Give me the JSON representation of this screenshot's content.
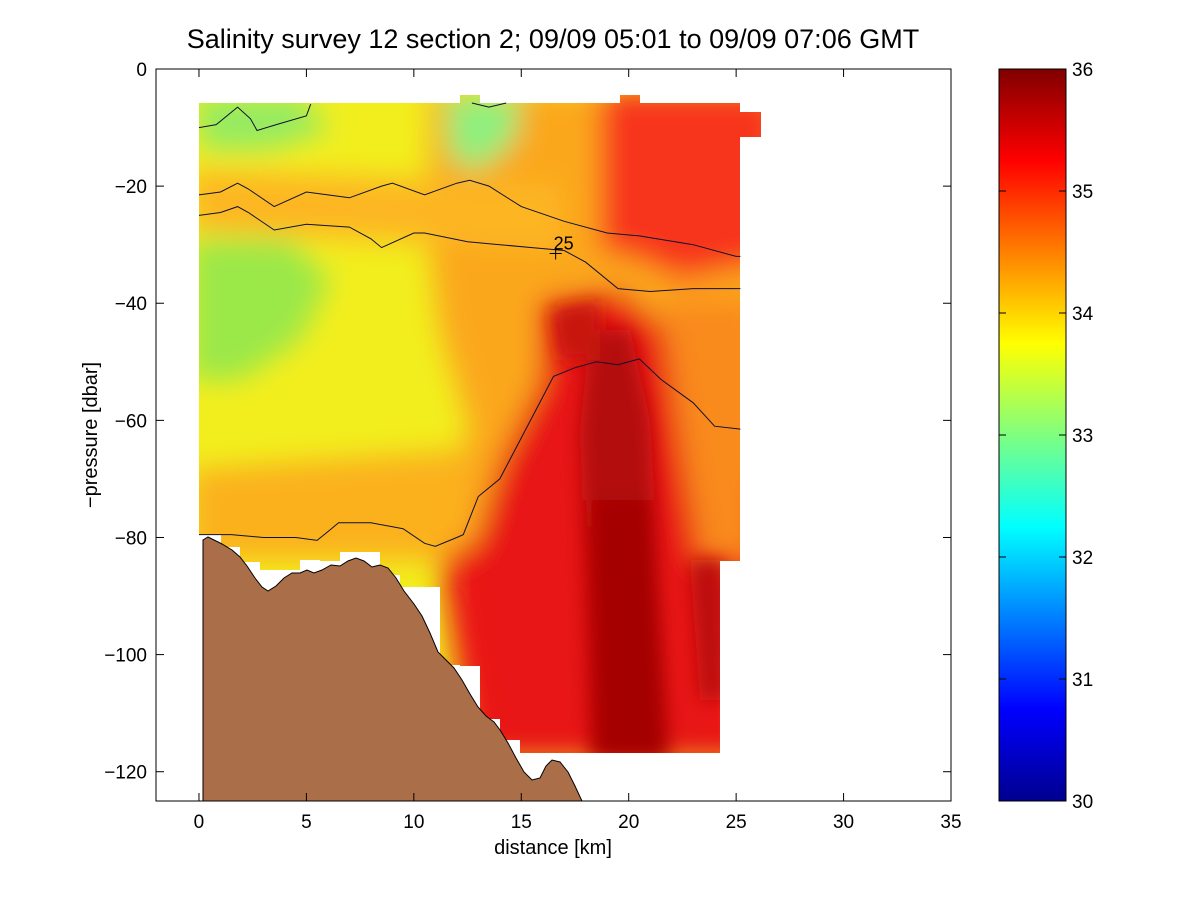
{
  "chart_data": {
    "type": "heatmap",
    "title": "Salinity survey 12 section 2; 09/09 05:01 to 09/09 07:06 GMT",
    "xlabel": "distance [km]",
    "ylabel": "−pressure [dbar]",
    "xlim": [
      -2,
      35
    ],
    "ylim": [
      -125,
      0
    ],
    "xticks": [
      0,
      5,
      10,
      15,
      20,
      25,
      30,
      35
    ],
    "yticks": [
      0,
      -20,
      -40,
      -60,
      -80,
      -100,
      -120
    ],
    "ytick_labels": [
      "0",
      "−20",
      "−40",
      "−60",
      "−80",
      "−100",
      "−120"
    ],
    "grid": false,
    "colorbar": {
      "min": 30,
      "max": 36,
      "ticks": [
        30,
        31,
        32,
        33,
        34,
        35,
        36
      ],
      "colormap": "jet",
      "levels": 64
    },
    "contour_labels": [
      {
        "text": "25",
        "x": 16.6,
        "y": -31.5
      }
    ],
    "contours": [
      {
        "points": [
          [
            0,
            -10
          ],
          [
            0.8,
            -9.5
          ],
          [
            1.8,
            -6.5
          ],
          [
            2.4,
            -8.5
          ],
          [
            2.7,
            -10.5
          ],
          [
            3.6,
            -9.5
          ],
          [
            5,
            -8
          ],
          [
            5.2,
            -6
          ]
        ]
      },
      {
        "points": [
          [
            12.7,
            -5.8
          ],
          [
            13.5,
            -6.5
          ],
          [
            14.3,
            -5.8
          ]
        ]
      },
      {
        "points": [
          [
            0,
            -21.5
          ],
          [
            1,
            -21
          ],
          [
            1.8,
            -19.5
          ],
          [
            2.3,
            -20.5
          ],
          [
            3.5,
            -23.5
          ],
          [
            5,
            -21
          ],
          [
            6,
            -21.5
          ],
          [
            7,
            -22
          ],
          [
            8.5,
            -20
          ],
          [
            9,
            -19.5
          ],
          [
            10.5,
            -21.5
          ],
          [
            12,
            -19.5
          ],
          [
            12.6,
            -19
          ],
          [
            13.5,
            -20
          ],
          [
            15,
            -23.5
          ],
          [
            17,
            -26
          ],
          [
            19,
            -28
          ],
          [
            20.5,
            -28.5
          ],
          [
            23,
            -30
          ],
          [
            25,
            -32
          ],
          [
            25.2,
            -32
          ]
        ]
      },
      {
        "points": [
          [
            0,
            -25
          ],
          [
            1,
            -24.5
          ],
          [
            1.8,
            -23.5
          ],
          [
            2.3,
            -24.5
          ],
          [
            3.5,
            -27.5
          ],
          [
            5,
            -26.5
          ],
          [
            7,
            -27
          ],
          [
            8,
            -29
          ],
          [
            8.5,
            -30.5
          ],
          [
            10,
            -28
          ],
          [
            10.5,
            -28
          ],
          [
            12.5,
            -29.5
          ],
          [
            14,
            -30
          ],
          [
            15.5,
            -30.5
          ],
          [
            17,
            -31
          ],
          [
            18,
            -33
          ],
          [
            19.5,
            -37.5
          ],
          [
            21,
            -38
          ],
          [
            23,
            -37.5
          ],
          [
            25,
            -37.5
          ],
          [
            25.2,
            -37.5
          ]
        ]
      },
      {
        "points": [
          [
            0,
            -79.5
          ],
          [
            1.5,
            -79.5
          ],
          [
            3,
            -80
          ],
          [
            4.5,
            -80
          ],
          [
            5.5,
            -80.5
          ],
          [
            6,
            -79
          ],
          [
            6.5,
            -77.5
          ],
          [
            8,
            -77.5
          ],
          [
            9.5,
            -78.5
          ],
          [
            10.5,
            -81
          ],
          [
            11,
            -81.5
          ],
          [
            12,
            -80
          ],
          [
            12.3,
            -79.5
          ],
          [
            13,
            -73
          ],
          [
            14,
            -70
          ],
          [
            15,
            -63
          ],
          [
            16,
            -56
          ],
          [
            16.5,
            -52.5
          ],
          [
            17.5,
            -51
          ],
          [
            18.5,
            -50
          ],
          [
            19.5,
            -50.5
          ],
          [
            20.5,
            -49.5
          ],
          [
            21.5,
            -53
          ],
          [
            23,
            -57
          ],
          [
            24,
            -61
          ],
          [
            25.2,
            -61.5
          ]
        ]
      }
    ]
  }
}
